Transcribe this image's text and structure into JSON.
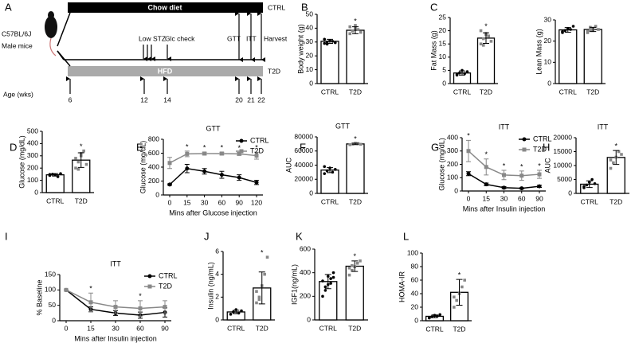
{
  "diagram": {
    "panel": "A",
    "strain": "C57BL/6J",
    "sex": "Male mice",
    "top_bar": "Chow diet",
    "top_group": "CTRL",
    "bottom_bar": "HFD",
    "bottom_group": "T2D",
    "events": [
      "Low STZ",
      "Glc check",
      "GTT",
      "ITT",
      "Harvest"
    ],
    "age_label": "Age (wks)",
    "ages": [
      6,
      12,
      14,
      20,
      21,
      22
    ]
  },
  "chart_data": [
    {
      "type": "bar",
      "panel": "B",
      "ylabel": "Body weight (g)",
      "categories": [
        "CTRL",
        "T2D"
      ],
      "values": [
        30.5,
        38.5
      ],
      "errors": [
        1.5,
        2.5
      ],
      "points": [
        [
          29,
          30,
          31,
          30.5,
          29.5,
          32,
          28.5
        ],
        [
          36,
          38,
          40,
          39,
          37,
          41,
          38,
          42
        ]
      ],
      "colors": [
        "#000000",
        "#888888"
      ],
      "markers": [
        "circle",
        "square"
      ],
      "ylim": [
        0,
        50
      ],
      "yticks": [
        0,
        10,
        20,
        30,
        40,
        50
      ],
      "annotations": [
        {
          "text": "*",
          "category": "T2D"
        }
      ]
    },
    {
      "type": "bar",
      "panel": "C",
      "ylabel": "Fat Mass (g)",
      "categories": [
        "CTRL",
        "T2D"
      ],
      "values": [
        4,
        17.2
      ],
      "errors": [
        0.8,
        2
      ],
      "points": [
        [
          3.5,
          4,
          5,
          3.8,
          4.5,
          3.2
        ],
        [
          15,
          17,
          19,
          18,
          16,
          20,
          14.5,
          18.5
        ]
      ],
      "colors": [
        "#000000",
        "#888888"
      ],
      "markers": [
        "circle",
        "square"
      ],
      "ylim": [
        0,
        25
      ],
      "yticks": [
        0,
        5,
        10,
        15,
        20,
        25
      ],
      "annotations": [
        {
          "text": "*",
          "category": "T2D"
        }
      ]
    },
    {
      "type": "bar",
      "ylabel": "Lean Mass (g)",
      "categories": [
        "CTRL",
        "T2D"
      ],
      "values": [
        25.3,
        25.5
      ],
      "errors": [
        1.1,
        1
      ],
      "points": [
        [
          24,
          25,
          26,
          25.5,
          27,
          24.5
        ],
        [
          24,
          25,
          26,
          27,
          25.5,
          24.5,
          26.5,
          25
        ]
      ],
      "colors": [
        "#000000",
        "#888888"
      ],
      "markers": [
        "circle",
        "square"
      ],
      "ylim": [
        0,
        30
      ],
      "yticks": [
        0,
        10,
        20,
        30
      ],
      "annotations": []
    },
    {
      "type": "bar",
      "panel": "D",
      "ylabel": "Glucose (mg/dL)",
      "categories": [
        "CTRL",
        "T2D"
      ],
      "values": [
        145,
        265
      ],
      "errors": [
        10,
        60
      ],
      "points": [
        [
          140,
          150,
          145,
          130,
          155,
          148
        ],
        [
          200,
          250,
          300,
          340,
          230,
          280,
          190,
          320
        ]
      ],
      "colors": [
        "#000000",
        "#888888"
      ],
      "markers": [
        "circle",
        "square"
      ],
      "ylim": [
        0,
        500
      ],
      "yticks": [
        0,
        100,
        200,
        300,
        400,
        500
      ],
      "annotations": [
        {
          "text": "*",
          "category": "T2D"
        }
      ]
    },
    {
      "type": "line",
      "panel": "E",
      "title": "GTT",
      "ylabel": "Glucose (mg/dL)",
      "xlabel": "Mins after Glucose injection",
      "categories": [
        "0",
        "15",
        "30",
        "60",
        "90",
        "120"
      ],
      "series": [
        {
          "name": "CTRL",
          "color": "#000000",
          "marker": "circle",
          "values": [
            150,
            380,
            340,
            290,
            250,
            180
          ],
          "errors": [
            10,
            60,
            40,
            50,
            40,
            30
          ]
        },
        {
          "name": "T2D",
          "color": "#888888",
          "marker": "square",
          "values": [
            460,
            590,
            595,
            595,
            590,
            565
          ],
          "errors": [
            80,
            40,
            20,
            20,
            20,
            50
          ]
        }
      ],
      "ylim": [
        0,
        800
      ],
      "yticks": [
        0,
        200,
        400,
        600,
        800
      ],
      "legend": "upper right",
      "annotations": [
        {
          "text": "*",
          "category": "15"
        },
        {
          "text": "*",
          "category": "30"
        },
        {
          "text": "*",
          "category": "60"
        },
        {
          "text": "*",
          "category": "90"
        },
        {
          "text": "*",
          "category": "120"
        }
      ]
    },
    {
      "type": "bar",
      "panel": "F",
      "title": "GTT",
      "ylabel": "AUC",
      "categories": [
        "CTRL",
        "T2D"
      ],
      "values": [
        33000,
        70000
      ],
      "errors": [
        3500,
        1000
      ],
      "points": [
        [
          28000,
          32000,
          36000,
          30000,
          34000,
          38000
        ],
        [
          69000,
          70000,
          71000,
          70500,
          69500
        ]
      ],
      "colors": [
        "#000000",
        "#888888"
      ],
      "markers": [
        "circle",
        "square"
      ],
      "ylim": [
        0,
        80000
      ],
      "yticks": [
        0,
        20000,
        40000,
        60000,
        80000
      ],
      "annotations": [
        {
          "text": "*",
          "category": "T2D"
        }
      ]
    },
    {
      "type": "line",
      "panel": "G",
      "title": "ITT",
      "ylabel": "Glucose (mg/dL)",
      "xlabel": "Mins after Insulin injection",
      "categories": [
        "0",
        "15",
        "30",
        "60",
        "90"
      ],
      "series": [
        {
          "name": "CTRL",
          "color": "#000000",
          "marker": "circle",
          "values": [
            130,
            50,
            25,
            20,
            35
          ],
          "errors": [
            15,
            10,
            8,
            5,
            8
          ]
        },
        {
          "name": "T2D",
          "color": "#888888",
          "marker": "square",
          "values": [
            300,
            180,
            120,
            115,
            125
          ],
          "errors": [
            80,
            60,
            35,
            35,
            30
          ]
        }
      ],
      "ylim": [
        0,
        400
      ],
      "yticks": [
        0,
        100,
        200,
        300,
        400
      ],
      "legend": "upper right",
      "annotations": [
        {
          "text": "*",
          "category": "0"
        },
        {
          "text": "*",
          "category": "15"
        },
        {
          "text": "*",
          "category": "30"
        },
        {
          "text": "*",
          "category": "60"
        },
        {
          "text": "*",
          "category": "90"
        }
      ]
    },
    {
      "type": "bar",
      "panel": "H",
      "title": "ITT",
      "ylabel": "AUC",
      "categories": [
        "CTRL",
        "T2D"
      ],
      "values": [
        3300,
        12900
      ],
      "errors": [
        1200,
        2500
      ],
      "points": [
        [
          2000,
          3000,
          4000,
          5000,
          3500,
          2500
        ],
        [
          9000,
          11000,
          13000,
          15000,
          14000,
          12000
        ]
      ],
      "colors": [
        "#000000",
        "#888888"
      ],
      "markers": [
        "circle",
        "square"
      ],
      "ylim": [
        0,
        20000
      ],
      "yticks": [
        0,
        5000,
        10000,
        15000,
        20000
      ],
      "annotations": [
        {
          "text": "*",
          "category": "T2D"
        }
      ]
    },
    {
      "type": "line",
      "panel": "I",
      "title": "ITT",
      "ylabel": "% Baseline",
      "xlabel": "Mins after Insulin injection",
      "categories": [
        "0",
        "15",
        "30",
        "60",
        "90"
      ],
      "series": [
        {
          "name": "CTRL",
          "color": "#000000",
          "marker": "circle",
          "values": [
            100,
            37,
            25,
            18,
            27
          ],
          "errors": [
            0,
            8,
            8,
            10,
            15
          ]
        },
        {
          "name": "T2D",
          "color": "#888888",
          "marker": "square",
          "values": [
            100,
            60,
            45,
            40,
            45
          ],
          "errors": [
            0,
            30,
            20,
            25,
            20
          ]
        }
      ],
      "ylim": [
        0,
        150
      ],
      "yticks": [
        0,
        50,
        100,
        150
      ],
      "legend": "upper right",
      "annotations": [
        {
          "text": "*",
          "category": "15"
        },
        {
          "text": "*",
          "category": "60"
        }
      ]
    },
    {
      "type": "bar",
      "panel": "J",
      "ylabel": "Insulin (ng/mL)",
      "categories": [
        "CTRL",
        "T2D"
      ],
      "values": [
        0.7,
        2.8
      ],
      "errors": [
        0.15,
        1.4
      ],
      "points": [
        [
          0.5,
          0.7,
          0.9,
          0.6,
          0.8
        ],
        [
          1.5,
          2,
          3,
          4,
          5.5,
          2.5,
          1.8
        ]
      ],
      "colors": [
        "#000000",
        "#888888"
      ],
      "markers": [
        "circle",
        "square"
      ],
      "ylim": [
        0,
        6
      ],
      "yticks": [
        0,
        2,
        4,
        6
      ],
      "annotations": [
        {
          "text": "*",
          "category": "T2D"
        }
      ]
    },
    {
      "type": "bar",
      "panel": "K",
      "ylabel": "IGF1(ng/mL)",
      "categories": [
        "CTRL",
        "T2D"
      ],
      "values": [
        325,
        455
      ],
      "errors": [
        60,
        45
      ],
      "points": [
        [
          200,
          250,
          300,
          350,
          400,
          330,
          280,
          370,
          310,
          360
        ],
        [
          380,
          420,
          450,
          480,
          500,
          440,
          460
        ]
      ],
      "colors": [
        "#000000",
        "#888888"
      ],
      "markers": [
        "circle",
        "square"
      ],
      "ylim": [
        0,
        600
      ],
      "yticks": [
        0,
        200,
        400,
        600
      ],
      "annotations": [
        {
          "text": "*",
          "category": "T2D"
        }
      ]
    },
    {
      "type": "bar",
      "panel": "L",
      "ylabel": "HOMA-IR",
      "categories": [
        "CTRL",
        "T2D"
      ],
      "values": [
        6.5,
        42
      ],
      "errors": [
        2,
        19
      ],
      "points": [
        [
          4,
          6,
          8,
          7,
          9,
          5
        ],
        [
          20,
          30,
          40,
          50,
          60,
          35
        ]
      ],
      "colors": [
        "#000000",
        "#888888"
      ],
      "markers": [
        "circle",
        "square"
      ],
      "ylim": [
        0,
        100
      ],
      "yticks": [
        0,
        20,
        40,
        60,
        80,
        100
      ],
      "annotations": [
        {
          "text": "*",
          "category": "T2D"
        }
      ]
    }
  ]
}
